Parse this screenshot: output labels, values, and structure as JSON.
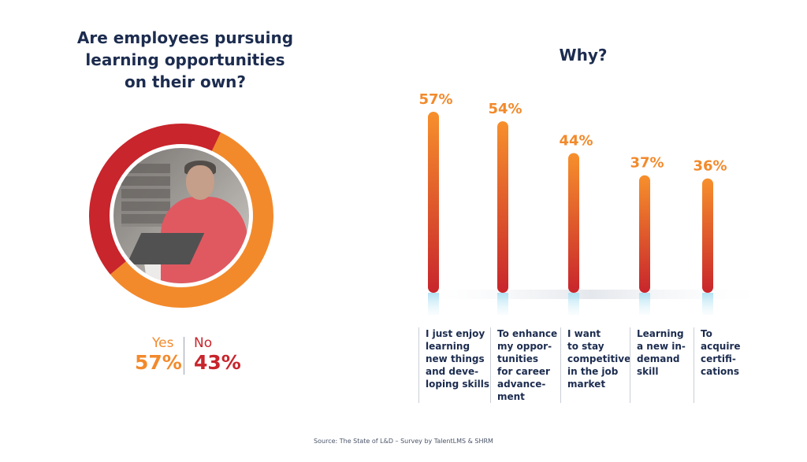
{
  "donut": {
    "title_lines": [
      "Are employees pursuing",
      "learning opportunities",
      "on their own?"
    ],
    "yes_label": "Yes",
    "yes_value": "57%",
    "no_label": "No",
    "no_value": "43%",
    "photo": "man-working-on-laptop"
  },
  "why": {
    "title": "Why?"
  },
  "source": "Source: The State of L&D – Survey by TalentLMS & SHRM",
  "colors": {
    "orange": "#f28a2c",
    "red": "#c8252c",
    "navy": "#1c2c4f",
    "light_blue": "#bfe3f2"
  },
  "chart_data": [
    {
      "type": "pie",
      "title": "Are employees pursuing learning opportunities on their own?",
      "categories": [
        "Yes",
        "No"
      ],
      "values": [
        57,
        43
      ],
      "colors": [
        "#f28a2c",
        "#c8252c"
      ]
    },
    {
      "type": "bar",
      "title": "Why?",
      "categories": [
        [
          "I just enjoy",
          "learning",
          "new things",
          "and deve-",
          "loping skills"
        ],
        [
          "To enhance",
          "my oppor-",
          "tunities",
          "for career",
          "advance-",
          "ment"
        ],
        [
          "I want",
          "to stay",
          "competitive",
          "in the job",
          "market"
        ],
        [
          "Learning",
          "a new in-",
          "demand",
          "skill"
        ],
        [
          "To",
          "acquire",
          "certifi-",
          "cations"
        ]
      ],
      "values": [
        57,
        54,
        44,
        37,
        36
      ],
      "value_labels": [
        "57%",
        "54%",
        "44%",
        "37%",
        "36%"
      ],
      "ylim": [
        0,
        57
      ]
    }
  ]
}
